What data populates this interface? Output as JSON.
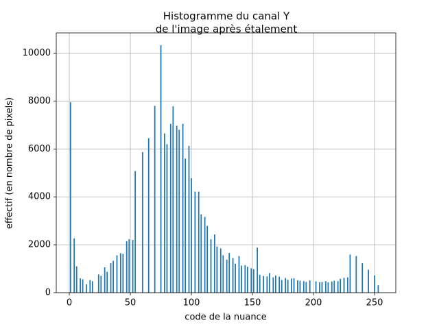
{
  "chart_data": {
    "type": "bar",
    "title": [
      "Histogramme du canal Y",
      "de l'image après étalement"
    ],
    "xlabel": "code de la nuance",
    "ylabel": "effectif (en nombre de pixels)",
    "color": "#1f77b4",
    "grid": true,
    "xlim": [
      -10.7,
      267.4
    ],
    "ylim": [
      0,
      10846
    ],
    "xticks": [
      0,
      50,
      100,
      150,
      200,
      250
    ],
    "yticks": [
      0,
      2000,
      4000,
      6000,
      8000,
      10000
    ],
    "x": [
      1,
      4,
      6,
      9,
      11,
      14,
      17,
      19,
      24,
      26,
      29,
      31,
      34,
      36,
      39,
      42,
      44,
      47,
      49,
      52,
      54,
      60,
      65,
      70,
      75,
      78,
      80,
      83,
      85,
      88,
      90,
      93,
      95,
      98,
      100,
      103,
      106,
      108,
      111,
      113,
      116,
      119,
      121,
      124,
      126,
      129,
      131,
      134,
      136,
      139,
      141,
      144,
      146,
      149,
      151,
      154,
      156,
      159,
      162,
      164,
      167,
      169,
      172,
      174,
      177,
      179,
      182,
      184,
      187,
      189,
      192,
      194,
      197,
      202,
      205,
      207,
      210,
      212,
      215,
      217,
      220,
      222,
      225,
      228,
      230,
      235,
      240,
      245,
      250,
      253
    ],
    "values": [
      7950,
      2270,
      1100,
      600,
      560,
      350,
      530,
      480,
      760,
      700,
      1060,
      870,
      1230,
      1330,
      1560,
      1650,
      1620,
      2150,
      2230,
      2200,
      5080,
      5870,
      6450,
      7800,
      10330,
      6650,
      6200,
      7050,
      7780,
      6970,
      6800,
      7050,
      5600,
      6130,
      4780,
      4220,
      4220,
      3270,
      3160,
      2790,
      2230,
      2430,
      1930,
      1850,
      1560,
      1380,
      1660,
      1450,
      1210,
      1530,
      1130,
      1150,
      1080,
      1020,
      980,
      1880,
      750,
      700,
      680,
      820,
      640,
      720,
      670,
      530,
      610,
      540,
      590,
      600,
      520,
      500,
      480,
      450,
      510,
      470,
      440,
      450,
      480,
      430,
      470,
      500,
      480,
      580,
      620,
      640,
      1590,
      1530,
      1230,
      960,
      720,
      310
    ]
  }
}
